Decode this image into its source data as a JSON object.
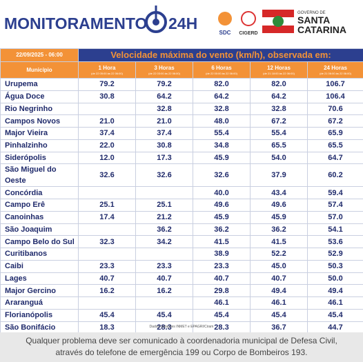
{
  "header": {
    "title": "MONITORAMENTO",
    "title_suffix": "24H",
    "logos": [
      "SDC",
      "CIGERD"
    ],
    "government": {
      "line1": "GOVERNO DE",
      "line2": "SANTA",
      "line3": "CATARINA"
    }
  },
  "table": {
    "timestamp": "22/09/2025 - 06:00",
    "caption": "Velocidade máxima do vento (km/h), observada em:",
    "columns": [
      {
        "label": "Município"
      },
      {
        "label": "1 Hora",
        "sub": "(de 22 05:00 às 22 06:00)"
      },
      {
        "label": "3 Horas",
        "sub": "(de 22 03:00 às 22 06:00)"
      },
      {
        "label": "6 Horas",
        "sub": "(de 22 00:00 às 22 06:00)"
      },
      {
        "label": "12 Horas",
        "sub": "(de 21 18:00 às 22 06:00)"
      },
      {
        "label": "24 Horas",
        "sub": "(de 21 06:00 às 22 06:00)"
      }
    ],
    "rows": [
      [
        "Urupema",
        "79.2",
        "79.2",
        "82.0",
        "82.0",
        "106.7"
      ],
      [
        "Água Doce",
        "30.8",
        "64.2",
        "64.2",
        "64.2",
        "106.4"
      ],
      [
        "Rio Negrinho",
        null,
        "32.8",
        "32.8",
        "32.8",
        "70.6"
      ],
      [
        "Campos Novos",
        "21.0",
        "21.0",
        "48.0",
        "67.2",
        "67.2"
      ],
      [
        "Major Vieira",
        "37.4",
        "37.4",
        "55.4",
        "55.4",
        "65.9"
      ],
      [
        "Pinhalzinho",
        "22.0",
        "30.8",
        "34.8",
        "65.5",
        "65.5"
      ],
      [
        "Siderópolis",
        "12.0",
        "17.3",
        "45.9",
        "54.0",
        "64.7"
      ],
      [
        "São Miguel do Oeste",
        "32.6",
        "32.6",
        "32.6",
        "37.9",
        "60.2"
      ],
      [
        "Concórdia",
        null,
        null,
        "40.0",
        "43.4",
        "59.4"
      ],
      [
        "Campo Erê",
        "25.1",
        "25.1",
        "49.6",
        "49.6",
        "57.4"
      ],
      [
        "Canoinhas",
        "17.4",
        "21.2",
        "45.9",
        "45.9",
        "57.0"
      ],
      [
        "São Joaquim",
        null,
        "36.2",
        "36.2",
        "36.2",
        "54.1"
      ],
      [
        "Campo Belo do Sul",
        "32.3",
        "34.2",
        "41.5",
        "41.5",
        "53.6"
      ],
      [
        "Curitibanos",
        null,
        null,
        "38.9",
        "52.2",
        "52.9"
      ],
      [
        "Caibi",
        "23.3",
        "23.3",
        "23.3",
        "45.0",
        "50.3"
      ],
      [
        "Lages",
        "40.7",
        "40.7",
        "40.7",
        "40.7",
        "50.0"
      ],
      [
        "Major Gercino",
        "16.2",
        "16.2",
        "29.8",
        "49.4",
        "49.4"
      ],
      [
        "Araranguá",
        null,
        null,
        "46.1",
        "46.1",
        "46.1"
      ],
      [
        "Florianópolis",
        "45.4",
        "45.4",
        "45.4",
        "45.4",
        "45.4"
      ],
      [
        "São Bonifácio",
        "18.3",
        "28.3",
        "28.3",
        "36.7",
        "44.7"
      ]
    ],
    "source": "Dados: estações INMET e EPAGRI/Ciram"
  },
  "footer": {
    "line1": "Qualquer problema deve ser comunicado à coordenadoria municipal de Defesa Civil,",
    "line2": "através do telefone de emergência 199 ou Corpo de Bombeiros 193."
  }
}
